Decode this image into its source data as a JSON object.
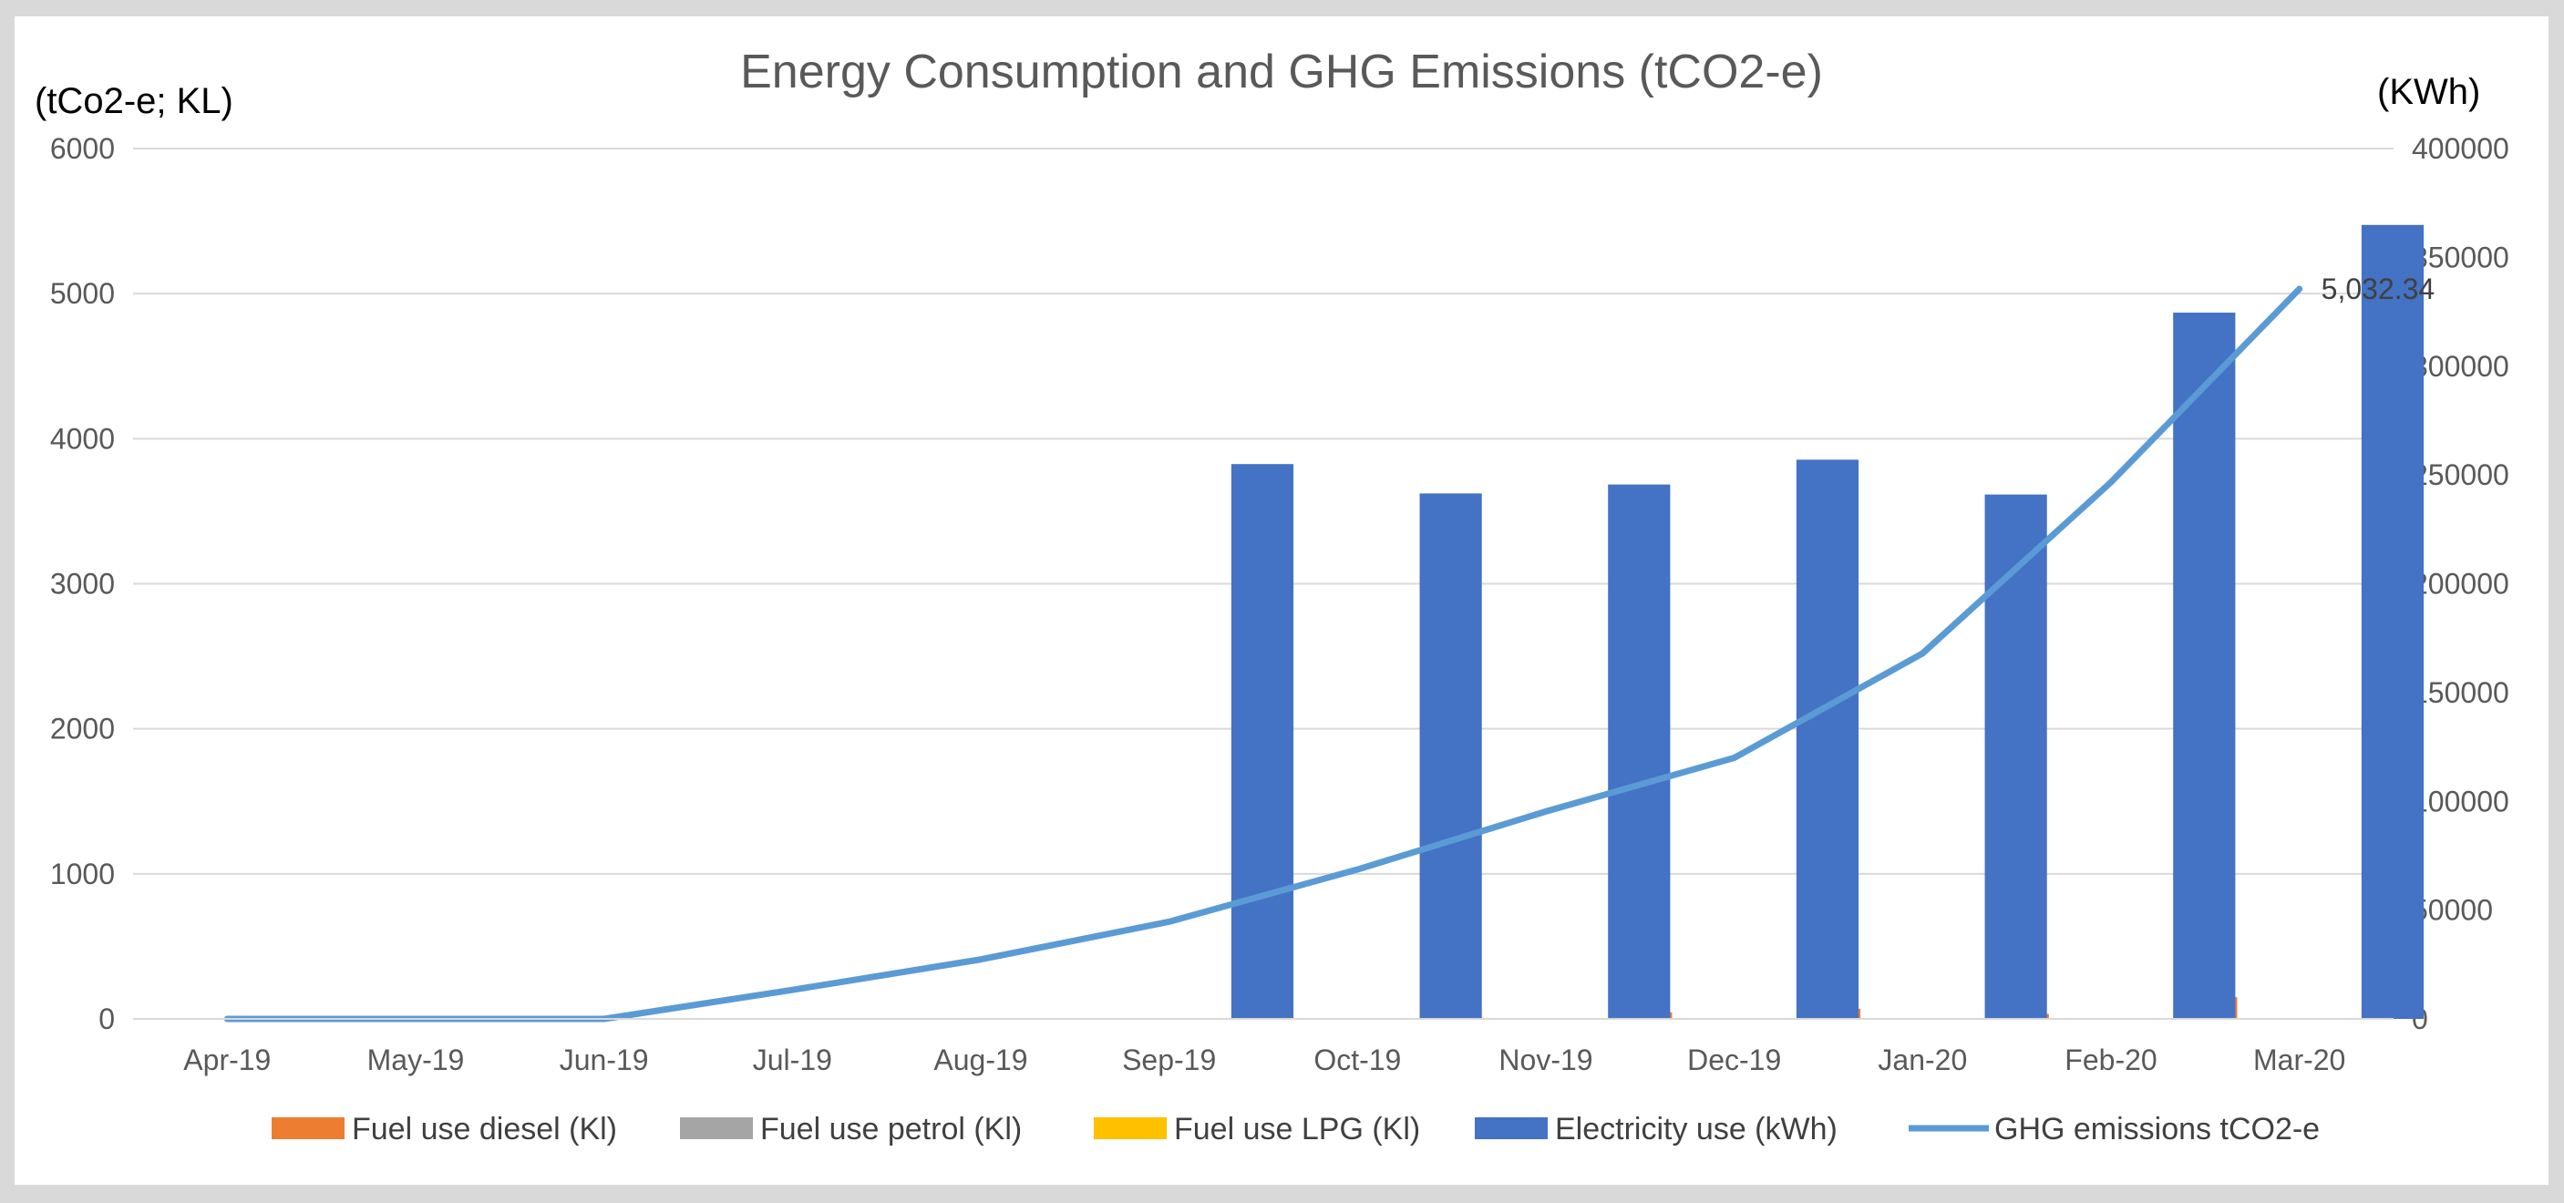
{
  "chart_data": {
    "type": "bar",
    "title": "Energy Consumption and GHG Emissions (tCO2-e)",
    "y_left_label": "(tCo2-e; KL)",
    "y_right_label": "(KWh)",
    "categories": [
      "Apr-19",
      "May-19",
      "Jun-19",
      "Jul-19",
      "Aug-19",
      "Sep-19",
      "Oct-19",
      "Nov-19",
      "Dec-19",
      "Jan-20",
      "Feb-20",
      "Mar-20"
    ],
    "y_left": {
      "ticks": [
        0,
        1000,
        2000,
        3000,
        4000,
        5000,
        6000
      ],
      "ylim": [
        0,
        6000
      ]
    },
    "y_right": {
      "ticks": [
        0,
        50000,
        100000,
        150000,
        200000,
        250000,
        300000,
        350000,
        400000
      ],
      "ylim": [
        0,
        400000
      ]
    },
    "grid": true,
    "legend_position": "bottom",
    "series": [
      {
        "name": "Fuel use diesel (Kl)",
        "kind": "bar",
        "axis": "left",
        "color": "#ED7D31",
        "values": [
          0,
          0,
          0,
          0,
          0,
          0,
          0,
          8,
          45,
          70,
          35,
          150
        ]
      },
      {
        "name": "Fuel use petrol (Kl)",
        "kind": "bar",
        "axis": "left",
        "color": "#A5A5A5",
        "values": [
          0,
          0,
          0,
          0,
          0,
          0,
          0,
          0,
          0,
          0,
          0,
          0
        ]
      },
      {
        "name": "Fuel use LPG (Kl)",
        "kind": "bar",
        "axis": "left",
        "color": "#FFC000",
        "values": [
          0,
          0,
          0,
          0,
          0,
          0,
          0,
          0,
          0,
          0,
          0,
          0
        ]
      },
      {
        "name": "Electricity use (kWh)",
        "kind": "bar",
        "axis": "right",
        "color": "#4472C4",
        "values": [
          0,
          0,
          0,
          0,
          0,
          255000,
          241500,
          245600,
          257000,
          241000,
          324600,
          364900
        ]
      },
      {
        "name": "GHG emissions tCO2-e",
        "kind": "line",
        "axis": "left",
        "color": "#5B9BD5",
        "values": [
          0,
          0,
          0,
          200,
          410,
          670,
          1030,
          1430,
          1800,
          2520,
          3700,
          5032.34
        ]
      }
    ],
    "annotations": [
      {
        "series": "GHG emissions tCO2-e",
        "category": "Mar-20",
        "text": "5,032.34"
      }
    ]
  }
}
